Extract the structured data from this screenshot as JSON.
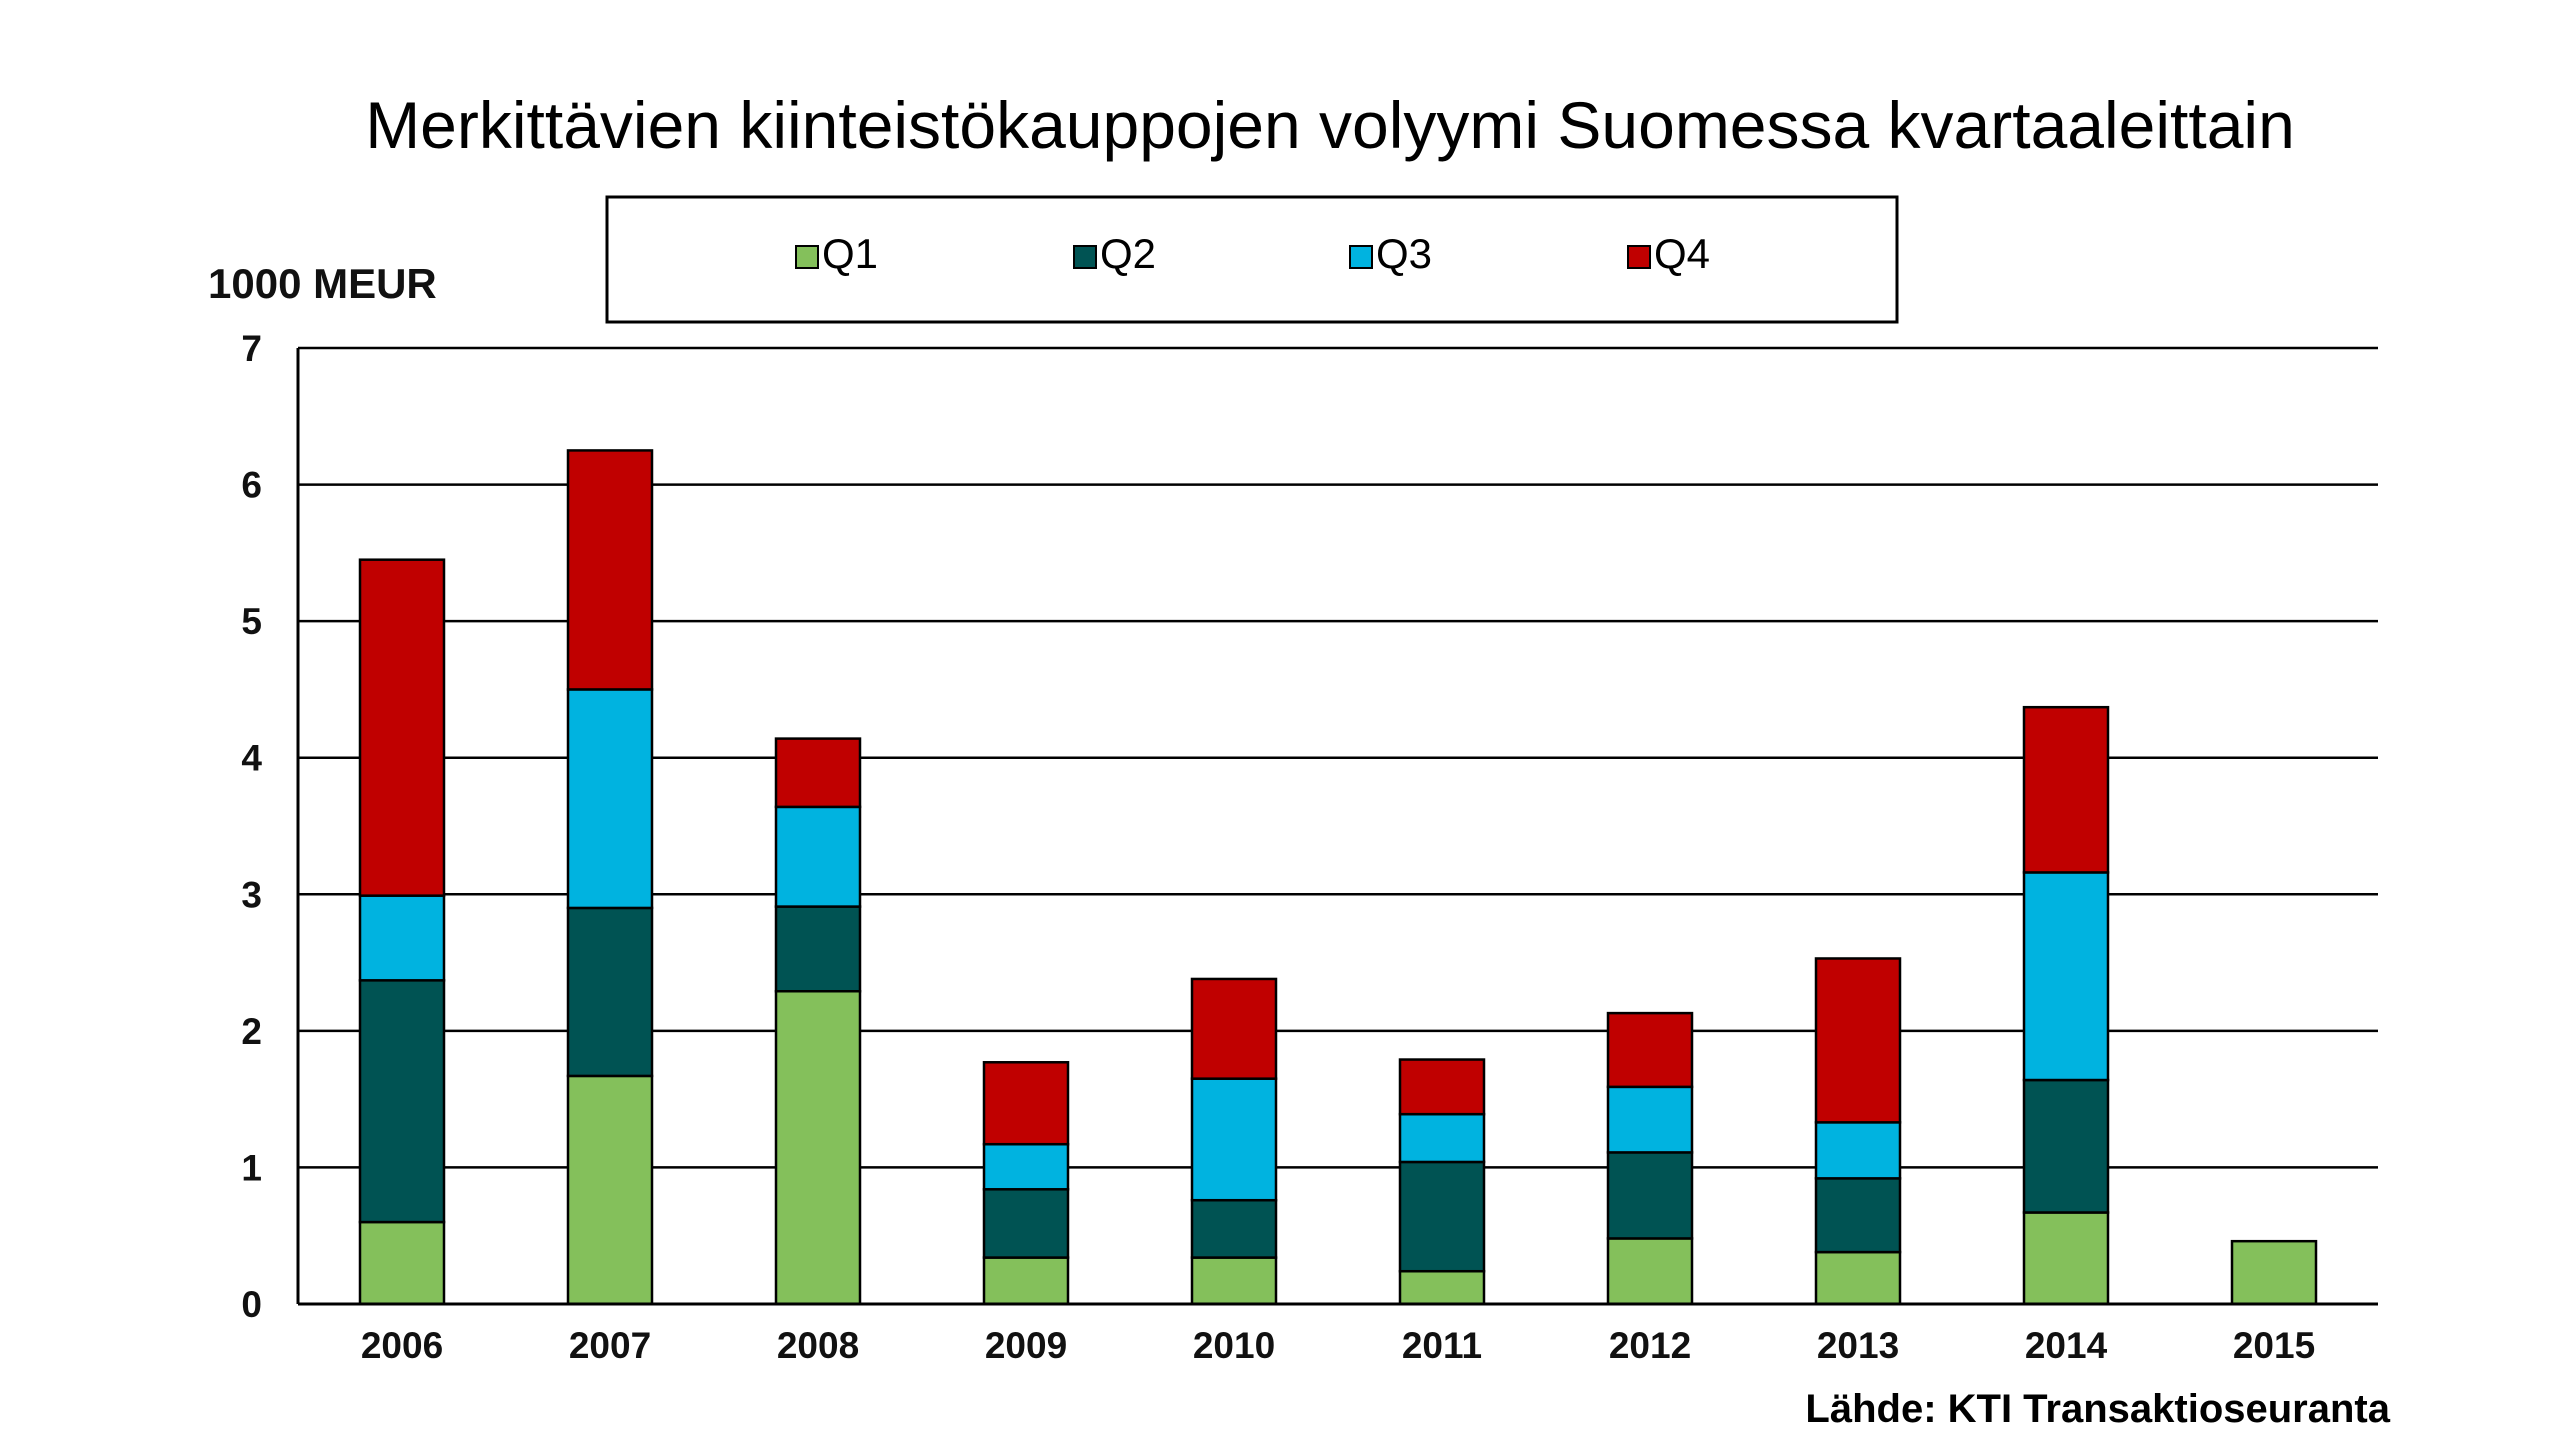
{
  "chart_data": {
    "type": "bar",
    "stacked": true,
    "title": "Merkittävien kiinteistökauppojen volyymi Suomessa kvartaaleittain",
    "ylabel": "1000 MEUR",
    "xlabel": "",
    "source": "Lähde: KTI Transaktioseuranta",
    "ylim": [
      0,
      7
    ],
    "yticks": [
      "0",
      "1",
      "2",
      "3",
      "4",
      "5",
      "6",
      "7"
    ],
    "grid": true,
    "legend_position": "top",
    "categories": [
      "2006",
      "2007",
      "2008",
      "2009",
      "2010",
      "2011",
      "2012",
      "2013",
      "2014",
      "2015"
    ],
    "series": [
      {
        "name": "Q1",
        "color": "#84c05b",
        "values": [
          0.6,
          1.67,
          2.29,
          0.34,
          0.34,
          0.24,
          0.48,
          0.38,
          0.67,
          0.46
        ]
      },
      {
        "name": "Q2",
        "color": "#005353",
        "values": [
          1.77,
          1.23,
          0.62,
          0.5,
          0.42,
          0.8,
          0.63,
          0.54,
          0.97,
          0
        ]
      },
      {
        "name": "Q3",
        "color": "#00b3e0",
        "values": [
          0.62,
          1.6,
          0.73,
          0.33,
          0.89,
          0.35,
          0.48,
          0.41,
          1.52,
          0
        ]
      },
      {
        "name": "Q4",
        "color": "#c00000",
        "values": [
          2.46,
          1.75,
          0.5,
          0.6,
          0.73,
          0.4,
          0.54,
          1.2,
          1.21,
          0
        ]
      }
    ]
  }
}
